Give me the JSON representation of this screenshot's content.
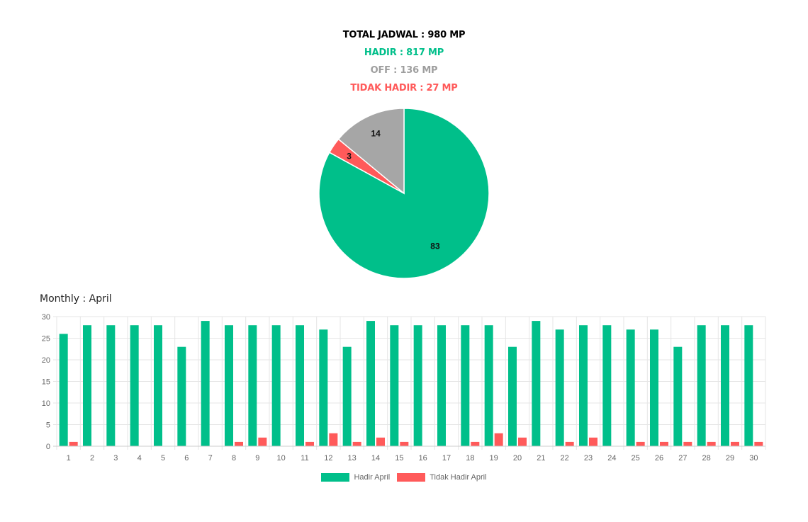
{
  "summary": {
    "total": "TOTAL JADWAL : 980 MP",
    "hadir": "HADIR : 817 MP",
    "off": "OFF : 136 MP",
    "tidak_hadir": "TIDAK HADIR : 27 MP"
  },
  "colors": {
    "hadir": "#00bf8a",
    "off": "#a6a6a6",
    "tidak_hadir": "#ff5a5a",
    "grid": "#e5e5e5",
    "tick": "#666666"
  },
  "chart_data": [
    {
      "type": "pie",
      "slices": [
        {
          "label": "83",
          "value": 83,
          "color": "#00bf8a"
        },
        {
          "label": "3",
          "value": 3,
          "color": "#ff5a5a"
        },
        {
          "label": "14",
          "value": 14,
          "color": "#a6a6a6"
        }
      ]
    },
    {
      "type": "bar",
      "title": "Monthly : April",
      "categories": [
        "1",
        "2",
        "3",
        "4",
        "5",
        "6",
        "7",
        "8",
        "9",
        "10",
        "11",
        "12",
        "13",
        "14",
        "15",
        "16",
        "17",
        "18",
        "19",
        "20",
        "21",
        "22",
        "23",
        "24",
        "25",
        "26",
        "27",
        "28",
        "29",
        "30"
      ],
      "series": [
        {
          "name": "Hadir April",
          "color": "#00bf8a",
          "values": [
            26,
            28,
            28,
            28,
            28,
            23,
            29,
            28,
            28,
            28,
            28,
            27,
            23,
            29,
            28,
            28,
            28,
            28,
            28,
            23,
            29,
            27,
            28,
            28,
            27,
            27,
            23,
            28,
            28,
            28
          ]
        },
        {
          "name": "Tidak Hadir April",
          "color": "#ff5a5a",
          "values": [
            1,
            0,
            0,
            0,
            0,
            0,
            0,
            1,
            2,
            0,
            1,
            3,
            1,
            2,
            1,
            0,
            0,
            1,
            3,
            2,
            0,
            1,
            2,
            0,
            1,
            1,
            1,
            1,
            1,
            1
          ]
        }
      ],
      "ylim": [
        0,
        30
      ],
      "yticks": [
        0,
        5,
        10,
        15,
        20,
        25,
        30
      ],
      "grid": true,
      "legend": "bottom"
    }
  ]
}
